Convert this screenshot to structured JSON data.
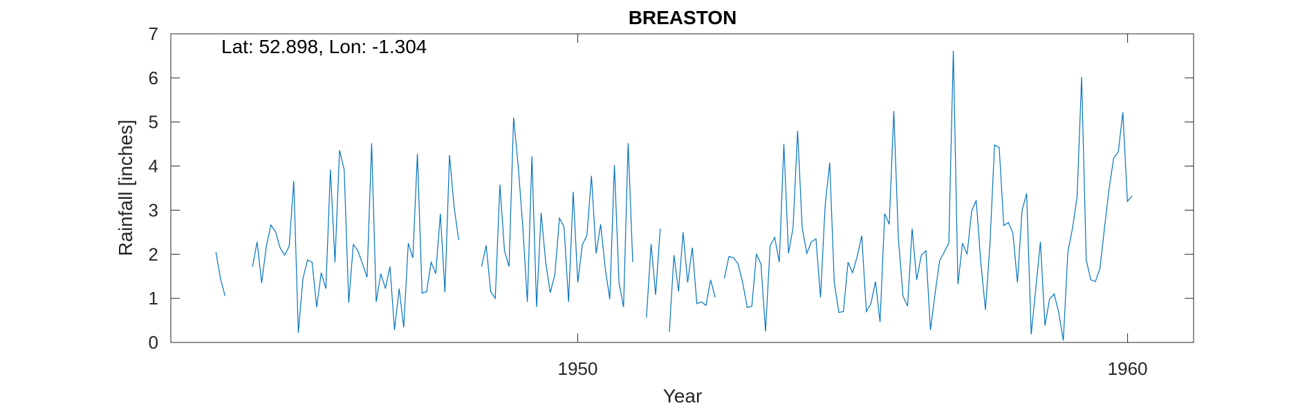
{
  "chart_data": {
    "type": "line",
    "title": "BREASTON",
    "xlabel": "Year",
    "ylabel": "Rainfall [inches]",
    "annotation": "Lat: 52.898, Lon: -1.304",
    "xlim": [
      1942.6,
      1961.2
    ],
    "ylim": [
      0,
      7
    ],
    "x_ticks": [
      1950,
      1960
    ],
    "x_tick_labels": [
      "1950",
      "1960"
    ],
    "y_ticks": [
      0,
      1,
      2,
      3,
      4,
      5,
      6,
      7
    ],
    "y_tick_labels": [
      "0",
      "1",
      "2",
      "3",
      "4",
      "5",
      "6",
      "7"
    ],
    "grid": false,
    "line_color": "#0072BD",
    "series": [
      {
        "x_start": 1943.42,
        "x_step": 0.0833,
        "values": [
          2.05,
          1.45,
          1.05,
          null,
          null,
          null,
          null,
          null,
          1.72,
          2.28,
          1.35,
          2.18,
          2.66,
          2.52,
          2.15,
          1.98,
          2.18,
          3.66,
          0.22,
          1.45,
          1.87,
          1.82,
          0.8,
          1.58,
          1.22,
          3.92,
          1.82,
          4.36,
          3.92,
          0.9,
          2.22,
          2.08,
          1.78,
          1.48,
          4.52,
          0.92,
          1.56,
          1.22,
          1.72,
          0.28,
          1.22,
          0.34,
          2.25,
          1.92,
          4.28,
          1.12,
          1.15,
          1.82,
          1.56,
          2.92,
          1.14,
          4.25,
          3.08,
          2.32,
          null,
          null,
          null,
          null,
          1.72,
          2.2,
          1.15,
          1.0,
          3.58,
          2.08,
          1.72,
          5.1,
          4.0,
          2.62,
          0.92,
          4.22,
          0.8,
          2.94,
          1.82,
          1.13,
          1.54,
          2.82,
          2.62,
          0.92,
          3.42,
          1.36,
          2.22,
          2.42,
          3.78,
          2.02,
          2.68,
          1.68,
          0.98,
          4.02,
          1.36,
          0.8,
          4.52,
          1.82,
          null,
          null,
          0.56,
          2.23,
          1.08,
          2.58,
          null,
          0.24,
          1.98,
          1.16,
          2.5,
          1.36,
          2.15,
          0.88,
          0.92,
          0.84,
          1.42,
          1.02,
          null,
          1.45,
          1.95,
          1.92,
          1.78,
          1.36,
          0.79,
          0.82,
          2.0,
          1.78,
          0.25,
          2.2,
          2.38,
          1.82,
          4.5,
          2.02,
          2.6,
          4.8,
          2.6,
          2.02,
          2.28,
          2.35,
          1.02,
          3.1,
          4.08,
          1.36,
          0.68,
          0.7,
          1.82,
          1.58,
          1.95,
          2.42,
          0.7,
          0.88,
          1.38,
          0.46,
          2.92,
          2.68,
          5.25,
          2.36,
          1.05,
          0.82,
          2.58,
          1.42,
          1.98,
          2.08,
          0.28,
          1.1,
          1.85,
          2.05,
          2.25,
          6.62,
          1.32,
          2.25,
          2.0,
          2.98,
          3.22,
          1.8,
          0.74,
          2.25,
          4.48,
          4.42,
          2.65,
          2.72,
          2.48,
          1.36,
          3.0,
          3.38,
          0.18,
          1.22,
          2.28,
          0.38,
          0.98,
          1.1,
          0.68,
          0.04,
          2.05,
          2.58,
          3.3,
          6.02,
          1.88,
          1.42,
          1.38,
          1.68,
          2.6,
          3.48,
          4.18,
          4.32,
          5.22,
          3.2,
          3.32
        ]
      }
    ]
  }
}
